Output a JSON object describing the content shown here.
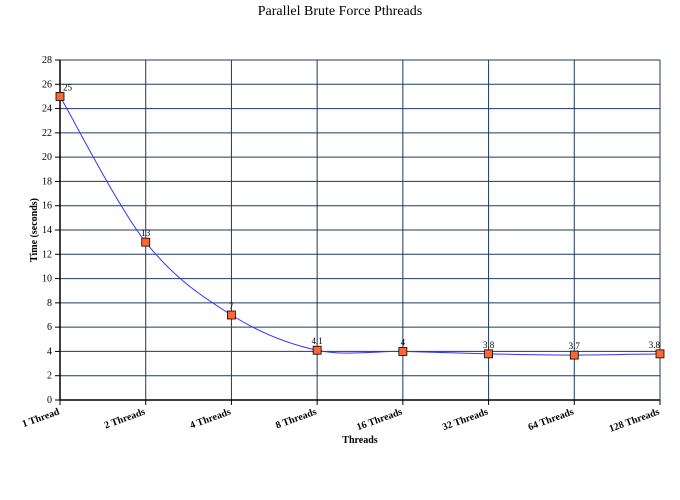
{
  "chart_data": {
    "type": "line",
    "title": "Parallel Brute Force Pthreads",
    "xlabel": "Threads",
    "ylabel": "Time (seconds)",
    "categories": [
      "1 Thread",
      "2 Threads",
      "4 Threads",
      "8 Threads",
      "16 Threads",
      "32 Threads",
      "64 Threads",
      "128 Threads"
    ],
    "series": [
      {
        "values": [
          25,
          13,
          7,
          4.1,
          4,
          3.8,
          3.7,
          3.8
        ],
        "labels": [
          "25",
          "13",
          "7",
          "4.1",
          "4",
          "3.8",
          "3.7",
          "3.8"
        ]
      }
    ],
    "ylim": [
      0,
      28
    ],
    "yticks": [
      "0",
      "2",
      "4",
      "6",
      "8",
      "10",
      "12",
      "14",
      "16",
      "18",
      "20",
      "22",
      "24",
      "26",
      "28"
    ],
    "grid": true,
    "legend": "none",
    "line_color": "#3333ff",
    "marker_color": "#ff6633",
    "grid_color": "#1f3a5f"
  }
}
